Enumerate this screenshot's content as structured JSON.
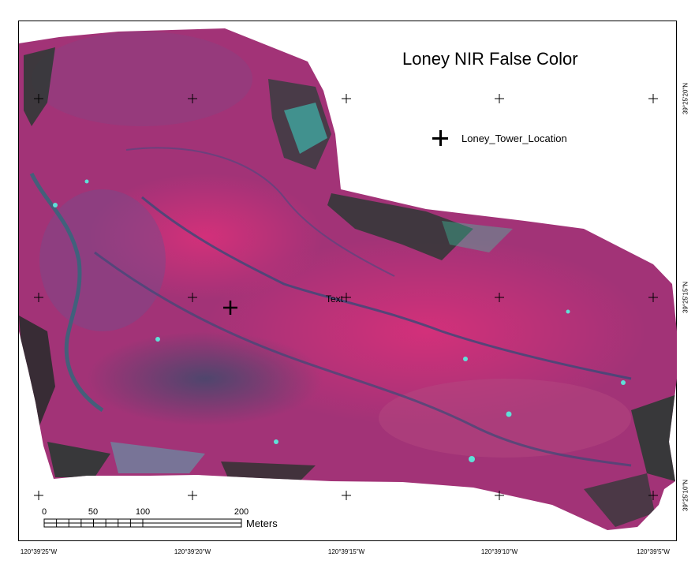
{
  "map": {
    "title": "Loney NIR False Color",
    "legend": {
      "icon": "tower-location-cross-icon",
      "label": "Loney_Tower_Location"
    },
    "annotation_text": "Text",
    "longitude_labels": [
      "120°39'25\"W",
      "120°39'20\"W",
      "120°39'15\"W",
      "120°39'10\"W",
      "120°39'5\"W"
    ],
    "latitude_labels": [
      "39°25'20\"N",
      "39°25'15\"N",
      "39°25'10\"N"
    ],
    "scale_bar": {
      "ticks": [
        "0",
        "50",
        "100",
        "200"
      ],
      "unit": "Meters"
    },
    "colors": {
      "vegetation": "#c0206a",
      "water": "#3ad8c8",
      "shadow": "#1e3a2a",
      "frame": "#000000"
    }
  }
}
